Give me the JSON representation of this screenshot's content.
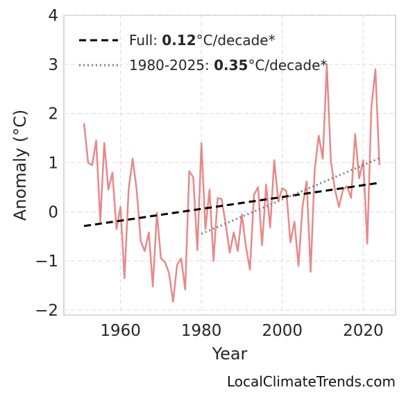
{
  "chart_data": {
    "type": "line",
    "title": "",
    "xlabel": "Year",
    "ylabel": "Anomaly (°C)",
    "xlim": [
      1946,
      2028
    ],
    "ylim": [
      -2.1,
      4.0
    ],
    "xticks": [
      1960,
      1980,
      2000,
      2020
    ],
    "yticks": [
      -2,
      -1,
      0,
      1,
      2,
      3,
      4
    ],
    "grid": true,
    "legend_position": "top-left",
    "series": [
      {
        "color": "#e8888a",
        "x": [
          1951,
          1952,
          1953,
          1954,
          1955,
          1956,
          1957,
          1958,
          1959,
          1960,
          1961,
          1962,
          1963,
          1964,
          1965,
          1966,
          1967,
          1968,
          1969,
          1970,
          1971,
          1972,
          1973,
          1974,
          1975,
          1976,
          1977,
          1978,
          1979,
          1980,
          1981,
          1982,
          1983,
          1984,
          1985,
          1986,
          1987,
          1988,
          1989,
          1990,
          1991,
          1992,
          1993,
          1994,
          1995,
          1996,
          1997,
          1998,
          1999,
          2000,
          2001,
          2002,
          2003,
          2004,
          2005,
          2006,
          2007,
          2008,
          2009,
          2010,
          2011,
          2012,
          2013,
          2014,
          2015,
          2016,
          2017,
          2018,
          2019,
          2020,
          2021,
          2022,
          2023,
          2024
        ],
        "y": [
          1.8,
          1.0,
          0.95,
          1.45,
          -0.2,
          1.4,
          0.45,
          0.8,
          -0.35,
          0.1,
          -1.35,
          0.45,
          1.08,
          0.45,
          -0.6,
          -0.8,
          -0.42,
          -1.52,
          -0.02,
          -0.95,
          -1.02,
          -1.25,
          -1.83,
          -1.08,
          -0.95,
          -1.58,
          0.83,
          0.7,
          -0.78,
          1.4,
          -0.35,
          0.45,
          -1.0,
          0.28,
          0.26,
          -0.25,
          -0.83,
          -0.42,
          -0.8,
          -0.05,
          -0.7,
          -1.18,
          0.35,
          0.5,
          -0.68,
          0.55,
          -0.32,
          1.05,
          0.22,
          0.48,
          0.42,
          -0.62,
          -0.2,
          -1.1,
          0.1,
          0.62,
          -1.22,
          0.85,
          1.55,
          1.08,
          3.0,
          1.05,
          0.45,
          0.1,
          0.45,
          0.52,
          0.28,
          1.58,
          0.68,
          1.05,
          -0.65,
          2.1,
          2.9,
          0.95
        ]
      },
      {
        "name": "Full: 0.12°C/decade*",
        "style": "dashed",
        "color": "#000000",
        "x": [
          1951,
          2024
        ],
        "y": [
          -0.29,
          0.59
        ]
      },
      {
        "name": "1980-2025: 0.35°C/decade*",
        "style": "dotted",
        "color": "#808080",
        "x": [
          1980,
          2024
        ],
        "y": [
          -0.45,
          1.09
        ]
      }
    ],
    "legend": [
      {
        "prefix": "Full: ",
        "value": "0.12",
        "suffix": "°C/decade*"
      },
      {
        "prefix": "1980-2025: ",
        "value": "0.35",
        "suffix": "°C/decade*"
      }
    ]
  },
  "watermark": "LocalClimateTrends.com"
}
